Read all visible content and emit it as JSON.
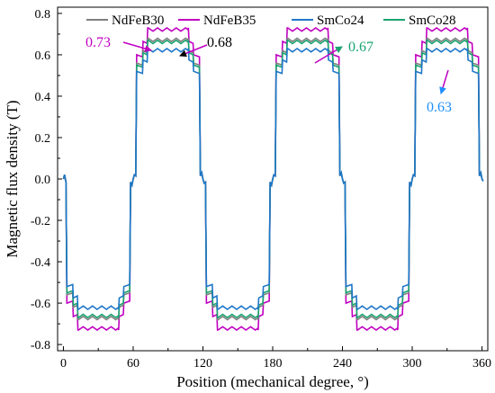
{
  "chart_data": {
    "type": "line",
    "title": "",
    "xlabel": "Position (mechanical degree, °)",
    "ylabel": "Magnetic flux density (T)",
    "xlim": [
      -5,
      365
    ],
    "ylim": [
      -0.83,
      0.83
    ],
    "xticks": [
      "0",
      "60",
      "120",
      "180",
      "240",
      "300",
      "360"
    ],
    "yticks": [
      "0.8",
      "0.6",
      "0.4",
      "0.2",
      "0.0",
      "-0.2",
      "-0.4",
      "-0.6",
      "-0.8"
    ],
    "grid": false,
    "legend_position": "top",
    "legend": [
      "NdFeB30",
      "NdFeB35",
      "SmCo24",
      "SmCo28"
    ],
    "pole_pitch_deg": 60,
    "series": [
      {
        "name": "NdFeB30",
        "color": "#7f7f7f",
        "peak": 0.68,
        "shoulder": 0.56
      },
      {
        "name": "NdFeB35",
        "color": "#c000c0",
        "peak": 0.73,
        "shoulder": 0.6
      },
      {
        "name": "SmCo24",
        "color": "#1f77c8",
        "peak": 0.63,
        "shoulder": 0.52
      },
      {
        "name": "SmCo28",
        "color": "#1aa36f",
        "peak": 0.67,
        "shoulder": 0.55
      }
    ],
    "annotations": [
      {
        "text": "0.73",
        "color": "#c000c0"
      },
      {
        "text": "0.68",
        "color": "#000000"
      },
      {
        "text": "0.67",
        "color": "#1aa36f"
      },
      {
        "text": "0.63",
        "color": "#1e90ff"
      }
    ]
  }
}
